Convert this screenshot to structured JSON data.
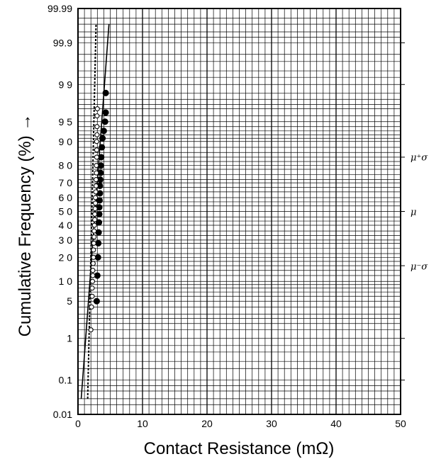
{
  "chart_data": {
    "type": "scatter",
    "title": "",
    "xlabel": "Contact Resistance (mΩ)",
    "ylabel": "Cumulative Frequency (%) →",
    "xlim": [
      0,
      50
    ],
    "ylim": [
      0.01,
      99.99
    ],
    "y_scale": "normal-probability",
    "grid": true,
    "x_ticks": [
      "0",
      "10",
      "20",
      "30",
      "40",
      "50"
    ],
    "y_ticks": [
      {
        "value": 99.99,
        "label": "99.99"
      },
      {
        "value": 99.9,
        "label": "99.9"
      },
      {
        "value": 99,
        "label": "9 9"
      },
      {
        "value": 95,
        "label": "9 5"
      },
      {
        "value": 90,
        "label": "9 0"
      },
      {
        "value": 80,
        "label": "8 0"
      },
      {
        "value": 70,
        "label": "7 0"
      },
      {
        "value": 60,
        "label": "6 0"
      },
      {
        "value": 50,
        "label": "5 0"
      },
      {
        "value": 40,
        "label": "4 0"
      },
      {
        "value": 30,
        "label": "3 0"
      },
      {
        "value": 20,
        "label": "2 0"
      },
      {
        "value": 10,
        "label": "1 0"
      },
      {
        "value": 5,
        "label": "5"
      },
      {
        "value": 1,
        "label": "1"
      },
      {
        "value": 0.1,
        "label": "0.1"
      },
      {
        "value": 0.01,
        "label": "0.01"
      }
    ],
    "right_labels": [
      {
        "value": 84.13,
        "label": "μ⁺σ"
      },
      {
        "value": 50,
        "label": "μ"
      },
      {
        "value": 15.87,
        "label": "μ⁻σ"
      }
    ],
    "series": [
      {
        "marker": "filled-circle",
        "line": "solid",
        "fit_line": [
          [
            0.5,
            0.03
          ],
          [
            4.8,
            99.97
          ]
        ],
        "points": [
          [
            2.9,
            5
          ],
          [
            3.0,
            12
          ],
          [
            3.1,
            20
          ],
          [
            3.15,
            28
          ],
          [
            3.2,
            35
          ],
          [
            3.25,
            42
          ],
          [
            3.3,
            48
          ],
          [
            3.3,
            53
          ],
          [
            3.35,
            58
          ],
          [
            3.4,
            63
          ],
          [
            3.4,
            68
          ],
          [
            3.45,
            72
          ],
          [
            3.5,
            76
          ],
          [
            3.55,
            80
          ],
          [
            3.6,
            84
          ],
          [
            3.7,
            88
          ],
          [
            3.8,
            91
          ],
          [
            4.0,
            93
          ],
          [
            4.2,
            95
          ],
          [
            4.3,
            96.5
          ],
          [
            4.3,
            98.5
          ]
        ]
      },
      {
        "marker": "open-circle",
        "line": "dashed",
        "fit_line": [
          [
            1.5,
            0.03
          ],
          [
            2.8,
            99.97
          ]
        ],
        "points": [
          [
            2.0,
            1.5
          ],
          [
            2.1,
            4
          ],
          [
            2.2,
            6
          ],
          [
            2.2,
            8
          ],
          [
            2.25,
            10
          ],
          [
            2.3,
            12
          ],
          [
            2.3,
            14
          ],
          [
            2.35,
            17
          ],
          [
            2.4,
            20
          ],
          [
            2.4,
            24
          ],
          [
            2.45,
            28
          ],
          [
            2.5,
            32
          ],
          [
            2.5,
            36
          ],
          [
            2.55,
            40
          ],
          [
            2.6,
            44
          ],
          [
            2.6,
            48
          ],
          [
            2.65,
            52
          ],
          [
            2.7,
            56
          ],
          [
            2.7,
            60
          ],
          [
            2.75,
            64
          ],
          [
            2.8,
            68
          ],
          [
            2.8,
            72
          ],
          [
            2.85,
            76
          ],
          [
            2.85,
            80
          ],
          [
            2.9,
            84
          ],
          [
            2.9,
            87
          ],
          [
            2.9,
            90
          ],
          [
            2.95,
            92
          ],
          [
            2.95,
            94
          ],
          [
            2.95,
            96
          ],
          [
            3.0,
            97
          ]
        ]
      }
    ]
  }
}
